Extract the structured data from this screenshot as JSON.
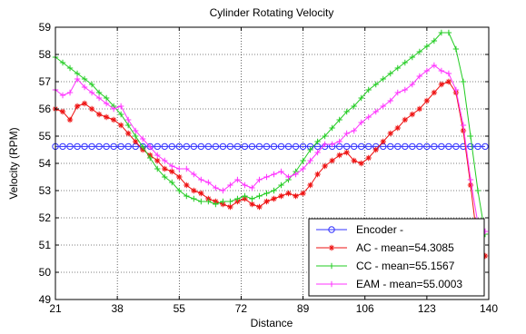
{
  "chart_data": {
    "type": "line",
    "title": "Cylinder Rotating Velocity",
    "xlabel": "Distance",
    "ylabel": "Velocity (RPM)",
    "xlim": [
      21,
      140
    ],
    "ylim": [
      49,
      59
    ],
    "x_ticks": [
      21,
      38,
      55,
      72,
      89,
      106,
      123,
      140
    ],
    "y_ticks": [
      49,
      50,
      51,
      52,
      53,
      54,
      55,
      56,
      57,
      58,
      59
    ],
    "grid": true,
    "legend_position": "bottom-right",
    "x": [
      21,
      23,
      25,
      27,
      29,
      31,
      33,
      35,
      37,
      39,
      41,
      43,
      45,
      47,
      49,
      51,
      53,
      55,
      57,
      59,
      61,
      63,
      65,
      67,
      69,
      71,
      73,
      75,
      77,
      79,
      81,
      83,
      85,
      87,
      89,
      91,
      93,
      95,
      97,
      99,
      101,
      103,
      105,
      107,
      109,
      111,
      113,
      115,
      117,
      119,
      121,
      123,
      125,
      127,
      129,
      131,
      133,
      135,
      137,
      139
    ],
    "series": [
      {
        "name": "Encoder -",
        "color": "#3333ff",
        "marker": "circle",
        "values": [
          54.62,
          54.62,
          54.62,
          54.62,
          54.62,
          54.62,
          54.62,
          54.62,
          54.62,
          54.62,
          54.62,
          54.62,
          54.62,
          54.62,
          54.62,
          54.62,
          54.62,
          54.62,
          54.62,
          54.62,
          54.62,
          54.62,
          54.62,
          54.62,
          54.62,
          54.62,
          54.62,
          54.62,
          54.62,
          54.62,
          54.62,
          54.62,
          54.62,
          54.62,
          54.62,
          54.62,
          54.62,
          54.62,
          54.62,
          54.62,
          54.62,
          54.62,
          54.62,
          54.62,
          54.62,
          54.62,
          54.62,
          54.62,
          54.62,
          54.62,
          54.62,
          54.62,
          54.62,
          54.62,
          54.62,
          54.62,
          54.62,
          54.62,
          54.62,
          54.62
        ]
      },
      {
        "name": "AC - mean=54.3085",
        "color": "#ee1111",
        "marker": "star",
        "values": [
          56.0,
          55.9,
          55.6,
          56.1,
          56.2,
          56.0,
          55.8,
          55.7,
          55.6,
          55.4,
          55.1,
          54.8,
          54.5,
          54.3,
          54.1,
          53.8,
          53.7,
          53.5,
          53.2,
          53.0,
          52.9,
          52.7,
          52.6,
          52.5,
          52.4,
          52.6,
          52.7,
          52.5,
          52.4,
          52.6,
          52.7,
          52.8,
          52.9,
          52.8,
          52.9,
          53.2,
          53.6,
          53.9,
          54.1,
          54.3,
          54.4,
          54.1,
          54.0,
          54.2,
          54.5,
          54.8,
          55.1,
          55.3,
          55.6,
          55.8,
          56.0,
          56.3,
          56.6,
          56.9,
          57.0,
          56.6,
          55.2,
          53.2,
          51.0,
          50.6
        ]
      },
      {
        "name": "CC - mean=55.1567",
        "color": "#22cc22",
        "marker": "plus",
        "values": [
          57.9,
          57.7,
          57.5,
          57.3,
          57.1,
          56.9,
          56.6,
          56.4,
          56.1,
          55.8,
          55.4,
          55.0,
          54.6,
          54.2,
          53.8,
          53.5,
          53.3,
          53.0,
          52.8,
          52.7,
          52.6,
          52.6,
          52.5,
          52.6,
          52.6,
          52.7,
          52.8,
          52.7,
          52.8,
          52.9,
          53.0,
          53.2,
          53.4,
          53.7,
          54.1,
          54.5,
          54.8,
          55.0,
          55.3,
          55.6,
          55.9,
          56.1,
          56.4,
          56.7,
          56.9,
          57.1,
          57.3,
          57.5,
          57.7,
          57.9,
          58.1,
          58.3,
          58.5,
          58.8,
          58.8,
          58.2,
          57.0,
          55.0,
          53.0,
          51.4
        ]
      },
      {
        "name": "EAM - mean=55.0003",
        "color": "#ff33ff",
        "marker": "plus",
        "values": [
          56.7,
          56.5,
          56.6,
          57.1,
          56.8,
          56.6,
          56.4,
          56.2,
          56.0,
          56.1,
          55.6,
          55.2,
          54.9,
          54.6,
          54.3,
          54.1,
          53.9,
          53.8,
          53.8,
          53.6,
          53.4,
          53.3,
          53.1,
          53.0,
          53.2,
          53.4,
          53.2,
          53.1,
          53.4,
          53.5,
          53.6,
          53.7,
          53.5,
          53.6,
          53.8,
          54.1,
          54.4,
          54.7,
          54.7,
          54.8,
          55.1,
          55.2,
          55.5,
          55.7,
          55.9,
          56.1,
          56.3,
          56.6,
          56.7,
          56.9,
          57.2,
          57.4,
          57.6,
          57.4,
          57.3,
          56.7,
          55.4,
          53.4,
          51.8,
          51.5
        ]
      }
    ]
  }
}
